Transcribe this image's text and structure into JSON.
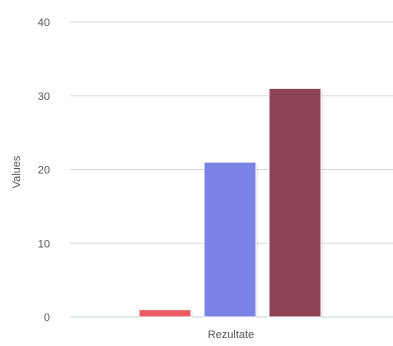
{
  "chart_data": {
    "type": "bar",
    "title": "",
    "xlabel": "",
    "ylabel": "Values",
    "categories": [
      "Rezultate"
    ],
    "series": [
      {
        "values": [
          1
        ],
        "color": "#e85c61"
      },
      {
        "values": [
          21
        ],
        "color": "#7b82e6"
      },
      {
        "values": [
          31
        ],
        "color": "#8d4354"
      }
    ],
    "ylim": [
      0,
      40
    ],
    "yticks": [
      0,
      10,
      20,
      30,
      40
    ],
    "grid": true,
    "legend": "none"
  }
}
